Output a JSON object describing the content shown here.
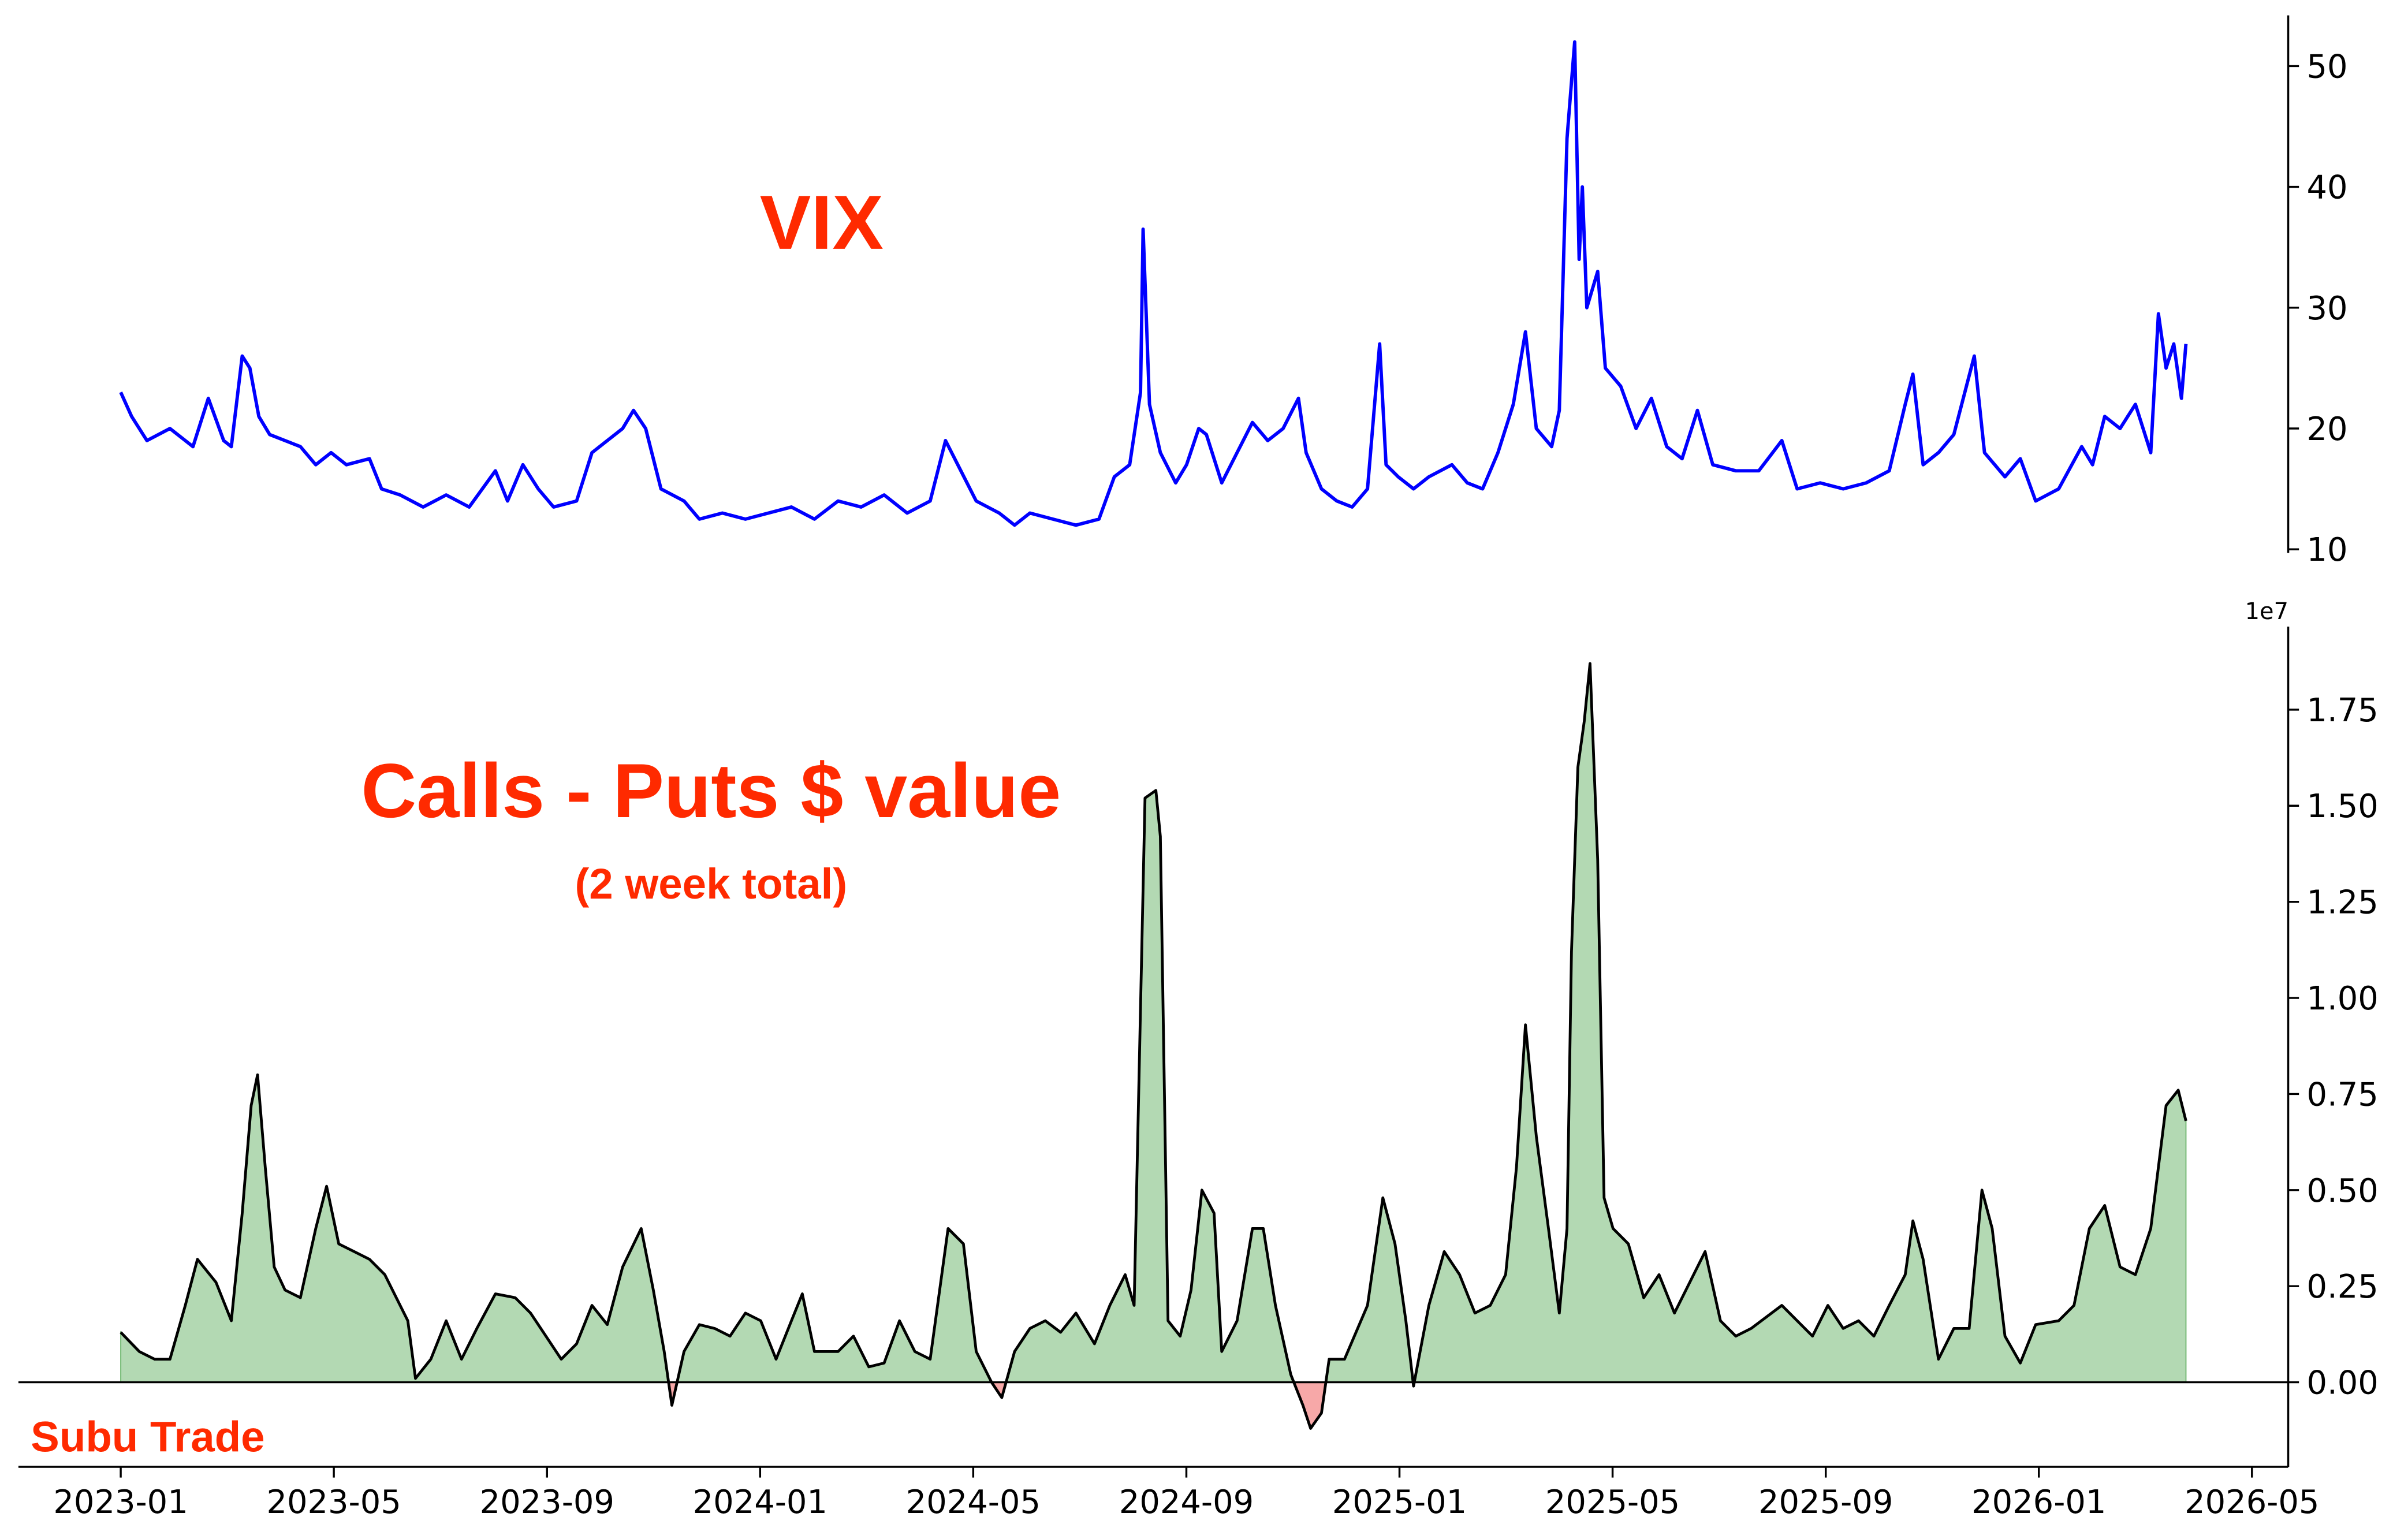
{
  "chart_data": [
    {
      "type": "line",
      "annotation": "VIX",
      "color": "#0000ff",
      "x": [
        2023.0,
        2023.017,
        2023.041,
        2023.077,
        2023.113,
        2023.137,
        2023.161,
        2023.173,
        2023.19,
        2023.202,
        2023.216,
        2023.233,
        2023.257,
        2023.281,
        2023.305,
        2023.329,
        2023.353,
        2023.389,
        2023.408,
        2023.437,
        2023.473,
        2023.509,
        2023.545,
        2023.586,
        2023.605,
        2023.629,
        2023.653,
        2023.677,
        2023.713,
        2023.737,
        2023.761,
        2023.785,
        2023.802,
        2023.821,
        2023.845,
        2023.881,
        2023.905,
        2023.941,
        2023.977,
        2024.013,
        2024.049,
        2024.085,
        2024.122,
        2024.158,
        2024.194,
        2024.23,
        2024.266,
        2024.29,
        2024.314,
        2024.338,
        2024.374,
        2024.398,
        2024.422,
        2024.458,
        2024.494,
        2024.53,
        2024.554,
        2024.578,
        2024.595,
        2024.599,
        2024.609,
        2024.626,
        2024.65,
        2024.667,
        2024.686,
        2024.698,
        2024.722,
        2024.746,
        2024.77,
        2024.794,
        2024.818,
        2024.842,
        2024.854,
        2024.878,
        2024.902,
        2024.926,
        2024.95,
        2024.969,
        2024.979,
        2024.998,
        2025.022,
        2025.046,
        2025.082,
        2025.106,
        2025.13,
        2025.154,
        2025.178,
        2025.197,
        2025.214,
        2025.238,
        2025.25,
        2025.262,
        2025.274,
        2025.281,
        2025.286,
        2025.293,
        2025.31,
        2025.322,
        2025.346,
        2025.37,
        2025.394,
        2025.418,
        2025.442,
        2025.466,
        2025.49,
        2025.526,
        2025.562,
        2025.598,
        2025.622,
        2025.658,
        2025.694,
        2025.73,
        2025.766,
        2025.791,
        2025.803,
        2025.819,
        2025.843,
        2025.867,
        2025.899,
        2025.915,
        2025.947,
        2025.971,
        2025.995,
        2026.031,
        2026.067,
        2026.084,
        2026.103,
        2026.127,
        2026.151,
        2026.175,
        2026.187,
        2026.199,
        2026.211,
        2026.223,
        2026.23
      ],
      "values": [
        23,
        21,
        19,
        20,
        18.5,
        22.5,
        19,
        18.5,
        26,
        25,
        21,
        19.5,
        19,
        18.5,
        17,
        18,
        17,
        17.5,
        15,
        14.5,
        13.5,
        14.5,
        13.5,
        16.5,
        14,
        17,
        15,
        13.5,
        14,
        18,
        19,
        20,
        21.5,
        20,
        15,
        14,
        12.5,
        13,
        12.5,
        13,
        13.5,
        12.5,
        14,
        13.5,
        14.5,
        13,
        14,
        19,
        16.5,
        14,
        13,
        12,
        13,
        12.5,
        12,
        12.5,
        16,
        17,
        23,
        36.5,
        22,
        18,
        15.5,
        17,
        20,
        19.5,
        15.5,
        18,
        20.5,
        19,
        20,
        22.5,
        18,
        15,
        14,
        13.5,
        15,
        27,
        17,
        16,
        15,
        16,
        17,
        15.5,
        15,
        18,
        22,
        28,
        20,
        18.5,
        21.5,
        44,
        52,
        34,
        40,
        30,
        33,
        25,
        23.5,
        20,
        22.5,
        18.5,
        17.5,
        21.5,
        17,
        16.5,
        16.5,
        19,
        15,
        15.5,
        15,
        15.5,
        16.5,
        22,
        24.5,
        17,
        18,
        19.5,
        26,
        18,
        16,
        17.5,
        14,
        15,
        18.5,
        17,
        21,
        20,
        22,
        18,
        29.5,
        25,
        27,
        22.5,
        27
      ],
      "xlim": [
        2022.84,
        2026.39
      ],
      "ylim": [
        9.7,
        54.2
      ],
      "yticks": [
        10,
        20,
        30,
        40,
        50
      ]
    },
    {
      "type": "area",
      "title": "Calls - Puts $ value",
      "subtitle": "(2 week total)",
      "watermark": "Subu Trade",
      "offset_label": "1e7",
      "line_color": "#000000",
      "positive_color": "#b3d9b3",
      "negative_color": "#f7a8a8",
      "x": [
        2023.0,
        2023.029,
        2023.053,
        2023.077,
        2023.101,
        2023.12,
        2023.149,
        2023.173,
        2023.19,
        2023.204,
        2023.214,
        2023.226,
        2023.24,
        2023.257,
        2023.281,
        2023.305,
        2023.322,
        2023.341,
        2023.365,
        2023.389,
        2023.413,
        2023.437,
        2023.449,
        2023.461,
        2023.485,
        2023.509,
        2023.533,
        2023.557,
        2023.586,
        2023.617,
        2023.641,
        2023.665,
        2023.689,
        2023.713,
        2023.737,
        2023.761,
        2023.785,
        2023.814,
        2023.833,
        2023.85,
        2023.862,
        2023.881,
        2023.905,
        2023.929,
        2023.953,
        2023.977,
        2024.001,
        2024.025,
        2024.049,
        2024.066,
        2024.085,
        2024.122,
        2024.146,
        2024.17,
        2024.194,
        2024.218,
        2024.242,
        2024.266,
        2024.294,
        2024.318,
        2024.338,
        2024.362,
        2024.378,
        2024.398,
        2024.422,
        2024.446,
        2024.47,
        2024.494,
        2024.523,
        2024.547,
        2024.571,
        2024.585,
        2024.602,
        2024.619,
        2024.626,
        2024.638,
        2024.657,
        2024.674,
        2024.691,
        2024.71,
        2024.722,
        2024.746,
        2024.77,
        2024.787,
        2024.806,
        2024.83,
        2024.849,
        2024.861,
        2024.878,
        2024.89,
        2024.914,
        2024.95,
        2024.974,
        2024.993,
        2025.01,
        2025.022,
        2025.046,
        2025.07,
        2025.094,
        2025.118,
        2025.142,
        2025.166,
        2025.183,
        2025.197,
        2025.214,
        2025.233,
        2025.25,
        2025.262,
        2025.269,
        2025.279,
        2025.289,
        2025.298,
        2025.31,
        2025.32,
        2025.334,
        2025.358,
        2025.382,
        2025.406,
        2025.43,
        2025.454,
        2025.478,
        2025.502,
        2025.526,
        2025.55,
        2025.574,
        2025.598,
        2025.622,
        2025.646,
        2025.67,
        2025.694,
        2025.718,
        2025.742,
        2025.766,
        2025.791,
        2025.803,
        2025.819,
        2025.843,
        2025.867,
        2025.891,
        2025.911,
        2025.927,
        2025.947,
        2025.971,
        2025.995,
        2026.031,
        2026.055,
        2026.079,
        2026.103,
        2026.127,
        2026.151,
        2026.175,
        2026.199,
        2026.218,
        2026.23
      ],
      "values": [
        0.13,
        0.08,
        0.06,
        0.06,
        0.2,
        0.32,
        0.26,
        0.16,
        0.44,
        0.72,
        0.8,
        0.56,
        0.3,
        0.24,
        0.22,
        0.4,
        0.51,
        0.36,
        0.34,
        0.32,
        0.28,
        0.2,
        0.16,
        0.01,
        0.06,
        0.16,
        0.06,
        0.14,
        0.23,
        0.22,
        0.18,
        0.12,
        0.06,
        0.1,
        0.2,
        0.15,
        0.3,
        0.4,
        0.24,
        0.08,
        -0.06,
        0.08,
        0.15,
        0.14,
        0.12,
        0.18,
        0.16,
        0.06,
        0.16,
        0.23,
        0.08,
        0.08,
        0.12,
        0.04,
        0.05,
        0.16,
        0.08,
        0.06,
        0.4,
        0.36,
        0.08,
        0,
        -0.04,
        0.08,
        0.14,
        0.16,
        0.13,
        0.18,
        0.1,
        0.2,
        0.28,
        0.2,
        1.52,
        1.54,
        1.42,
        0.16,
        0.12,
        0.24,
        0.5,
        0.44,
        0.08,
        0.16,
        0.4,
        0.4,
        0.2,
        0.02,
        -0.06,
        -0.12,
        -0.08,
        0.06,
        0.06,
        0.2,
        0.48,
        0.36,
        0.16,
        -0.01,
        0.2,
        0.34,
        0.28,
        0.18,
        0.2,
        0.28,
        0.56,
        0.93,
        0.64,
        0.4,
        0.18,
        0.4,
        1.12,
        1.6,
        1.72,
        1.87,
        1.36,
        0.48,
        0.4,
        0.36,
        0.22,
        0.28,
        0.18,
        0.26,
        0.34,
        0.16,
        0.12,
        0.14,
        0.17,
        0.2,
        0.16,
        0.12,
        0.2,
        0.14,
        0.16,
        0.12,
        0.2,
        0.28,
        0.42,
        0.32,
        0.06,
        0.14,
        0.14,
        0.5,
        0.4,
        0.12,
        0.05,
        0.15,
        0.16,
        0.2,
        0.4,
        0.46,
        0.3,
        0.28,
        0.4,
        0.72,
        0.76,
        0.68
      ],
      "xlim": [
        2022.84,
        2026.39
      ],
      "ylim": [
        -0.22,
        1.966
      ],
      "yticks": [
        {
          "value": 0,
          "label": "0.00"
        },
        {
          "value": 0.25,
          "label": "0.25"
        },
        {
          "value": 0.5,
          "label": "0.50"
        },
        {
          "value": 0.75,
          "label": "0.75"
        },
        {
          "value": 1,
          "label": "1.00"
        },
        {
          "value": 1.25,
          "label": "1.25"
        },
        {
          "value": 1.5,
          "label": "1.50"
        },
        {
          "value": 1.75,
          "label": "1.75"
        }
      ],
      "xticks": [
        {
          "value": 2023.0,
          "label": "2023-01"
        },
        {
          "value": 2023.3333,
          "label": "2023-05"
        },
        {
          "value": 2023.6667,
          "label": "2023-09"
        },
        {
          "value": 2024.0,
          "label": "2024-01"
        },
        {
          "value": 2024.3333,
          "label": "2024-05"
        },
        {
          "value": 2024.6667,
          "label": "2024-09"
        },
        {
          "value": 2025.0,
          "label": "2025-01"
        },
        {
          "value": 2025.3333,
          "label": "2025-05"
        },
        {
          "value": 2025.6667,
          "label": "2025-09"
        },
        {
          "value": 2026.0,
          "label": "2026-01"
        },
        {
          "value": 2026.3333,
          "label": "2026-05"
        }
      ]
    }
  ]
}
